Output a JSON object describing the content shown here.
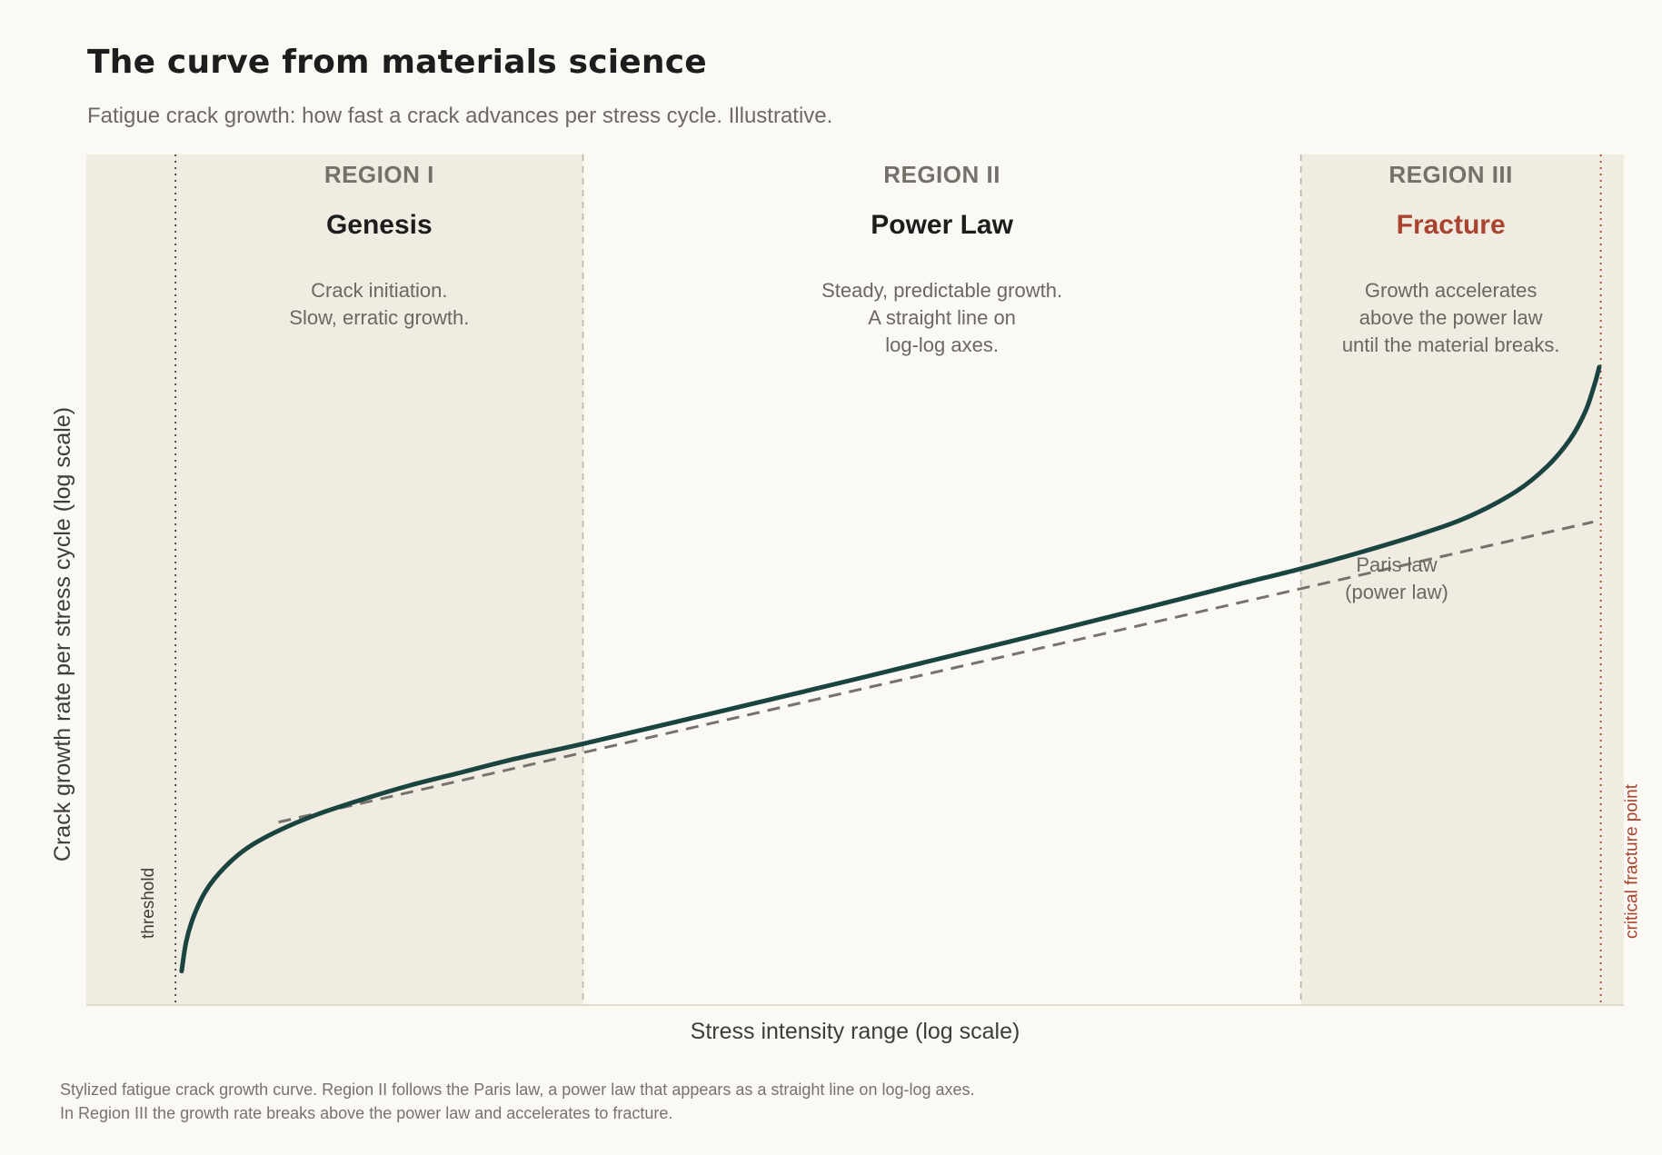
{
  "header": {
    "title": "The curve from materials science",
    "subtitle": "Fatigue crack growth: how fast a crack advances per stress cycle. Illustrative."
  },
  "caption": {
    "line1": "Stylized fatigue crack growth curve. Region II follows the Paris law, a power law that appears as a straight line on log-log axes.",
    "line2": "In Region III the growth rate breaks above the power law and accelerates to fracture."
  },
  "colors": {
    "background": "#fbf9f4",
    "region_shade": "#f0ece2",
    "curve": "#1a4440",
    "dashed_fit": "#77736c",
    "fracture_accent": "#a8432f",
    "boundary": "#b9b3a8"
  },
  "chart_data": {
    "type": "line",
    "title": "The curve from materials science",
    "xlabel": "Stress intensity range  (log scale)",
    "ylabel": "Crack growth rate per stress cycle  (log scale)",
    "x_scale": "log",
    "y_scale": "log",
    "xlim": [
      0,
      1
    ],
    "ylim": [
      0,
      1
    ],
    "grid": false,
    "regions": [
      {
        "tag": "REGION I",
        "name": "Genesis",
        "desc": [
          "Crack initiation.",
          "Slow, erratic growth."
        ],
        "x_range": [
          0.058,
          0.323
        ],
        "shaded": true,
        "name_color": "#1d1d1d"
      },
      {
        "tag": "REGION II",
        "name": "Power Law",
        "desc": [
          "Steady, predictable growth.",
          "A straight line on",
          "log-log axes."
        ],
        "x_range": [
          0.323,
          0.79
        ],
        "shaded": false,
        "name_color": "#1d1d1d"
      },
      {
        "tag": "REGION III",
        "name": "Fracture",
        "desc": [
          "Growth accelerates",
          "above the power law",
          "until the material breaks."
        ],
        "x_range": [
          0.79,
          0.985
        ],
        "shaded": true,
        "name_color": "#a8432f"
      }
    ],
    "markers": [
      {
        "label": "threshold",
        "x": 0.058,
        "color": "#3f3d39"
      },
      {
        "label": "critical fracture point",
        "x": 0.985,
        "color": "#a8432f"
      }
    ],
    "series": [
      {
        "points": [
          [
            0.062,
            0.04
          ],
          [
            0.065,
            0.075
          ],
          [
            0.07,
            0.105
          ],
          [
            0.078,
            0.135
          ],
          [
            0.09,
            0.162
          ],
          [
            0.105,
            0.185
          ],
          [
            0.125,
            0.205
          ],
          [
            0.15,
            0.224
          ],
          [
            0.18,
            0.242
          ],
          [
            0.21,
            0.258
          ],
          [
            0.245,
            0.274
          ],
          [
            0.28,
            0.29
          ],
          [
            0.323,
            0.307
          ],
          [
            0.4,
            0.34
          ],
          [
            0.5,
            0.383
          ],
          [
            0.6,
            0.427
          ],
          [
            0.7,
            0.472
          ],
          [
            0.75,
            0.495
          ],
          [
            0.79,
            0.513
          ],
          [
            0.83,
            0.533
          ],
          [
            0.87,
            0.555
          ],
          [
            0.9,
            0.575
          ],
          [
            0.93,
            0.604
          ],
          [
            0.95,
            0.633
          ],
          [
            0.965,
            0.665
          ],
          [
            0.975,
            0.698
          ],
          [
            0.981,
            0.73
          ],
          [
            0.984,
            0.75
          ]
        ]
      }
    ],
    "fit_line": {
      "label": [
        "Paris law",
        "(power law)"
      ],
      "points": [
        [
          0.125,
          0.215
        ],
        [
          0.98,
          0.568
        ]
      ],
      "style": "dashed"
    }
  }
}
